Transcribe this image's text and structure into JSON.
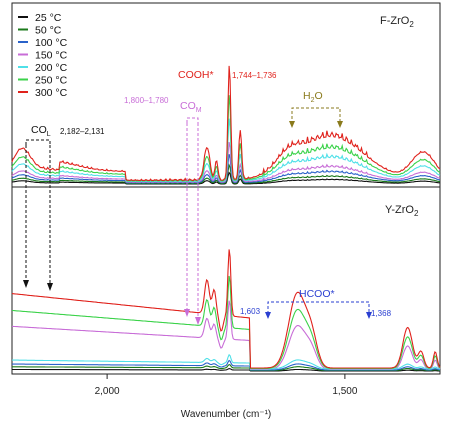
{
  "chart_data": {
    "type": "line",
    "xlabel": "Wavenumber (cm⁻¹)",
    "ylabel": "",
    "xlim": [
      2200,
      1300
    ],
    "x_reversed": true,
    "x_ticks": [
      2000,
      1500
    ],
    "x_tick_labels": [
      "2,000",
      "1,500"
    ],
    "grid": false,
    "legend_position": "top-left",
    "panels": [
      {
        "title": "F-ZrO",
        "title_sub": "2"
      },
      {
        "title": "Y-ZrO",
        "title_sub": "2"
      }
    ],
    "series": [
      {
        "name": "25 °C",
        "color": "#111111",
        "top_scale": 0.1,
        "bot_scale": 0.02
      },
      {
        "name": "50 °C",
        "color": "#1b7a1b",
        "top_scale": 0.16,
        "bot_scale": 0.05
      },
      {
        "name": "100 °C",
        "color": "#2a62c9",
        "top_scale": 0.25,
        "bot_scale": 0.08
      },
      {
        "name": "150 °C",
        "color": "#c86dd7",
        "top_scale": 0.35,
        "bot_scale": 0.58
      },
      {
        "name": "200 °C",
        "color": "#4fe0e8",
        "top_scale": 0.55,
        "bot_scale": 0.12
      },
      {
        "name": "250 °C",
        "color": "#3bd24a",
        "top_scale": 0.75,
        "bot_scale": 0.78
      },
      {
        "name": "300 °C",
        "color": "#e0221c",
        "top_scale": 1.0,
        "bot_scale": 1.0
      }
    ],
    "annotations": {
      "co_l": {
        "label": "CO",
        "sub": "L",
        "range": "2,182–2,131",
        "color": "#111111"
      },
      "co_m": {
        "label": "CO",
        "sub": "M",
        "range": "1,800–1,780",
        "color": "#c86dd7"
      },
      "cooh": {
        "label": "COOH*",
        "range": "1,744–1,736",
        "color": "#e0221c"
      },
      "h2o": {
        "label": "H",
        "sub": "2",
        "tail": "O",
        "color": "#8a7a1c"
      },
      "hcoo": {
        "label": "HCOO*",
        "left": "1,603",
        "right": "1,368",
        "color": "#2a3fd1"
      }
    }
  }
}
